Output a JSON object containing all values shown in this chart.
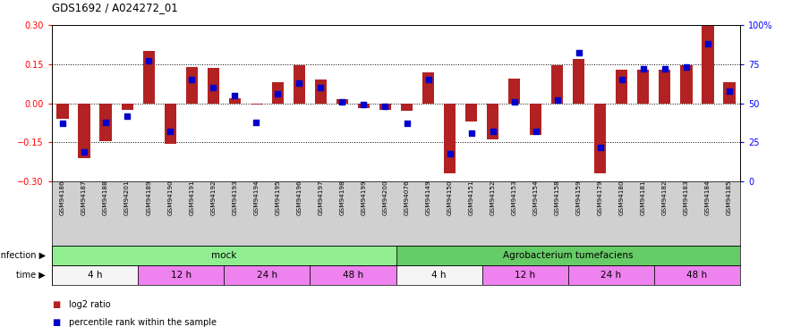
{
  "title": "GDS1692 / A024272_01",
  "samples": [
    "GSM94186",
    "GSM94187",
    "GSM94188",
    "GSM94201",
    "GSM94189",
    "GSM94190",
    "GSM94191",
    "GSM94192",
    "GSM94193",
    "GSM94194",
    "GSM94195",
    "GSM94196",
    "GSM94197",
    "GSM94198",
    "GSM94199",
    "GSM94200",
    "GSM94076",
    "GSM94149",
    "GSM94150",
    "GSM94151",
    "GSM94152",
    "GSM94153",
    "GSM94154",
    "GSM94158",
    "GSM94159",
    "GSM94179",
    "GSM94180",
    "GSM94181",
    "GSM94182",
    "GSM94183",
    "GSM94184",
    "GSM94185"
  ],
  "log2_ratio": [
    -0.06,
    -0.21,
    -0.145,
    -0.025,
    0.2,
    -0.155,
    0.14,
    0.135,
    0.02,
    -0.005,
    0.08,
    0.145,
    0.09,
    0.015,
    -0.02,
    -0.025,
    -0.03,
    0.12,
    -0.27,
    -0.07,
    -0.14,
    0.095,
    -0.12,
    0.145,
    0.17,
    -0.27,
    0.13,
    0.13,
    0.13,
    0.145,
    0.3,
    0.08
  ],
  "percentile_rank": [
    37,
    19,
    38,
    42,
    77,
    32,
    65,
    60,
    55,
    38,
    56,
    63,
    60,
    51,
    49,
    48,
    37,
    65,
    18,
    31,
    32,
    51,
    32,
    52,
    82,
    22,
    65,
    72,
    72,
    73,
    88,
    58
  ],
  "infection_labels": [
    "mock",
    "Agrobacterium tumefaciens"
  ],
  "infection_colors": [
    "#90ee90",
    "#66cc66"
  ],
  "time_groups": [
    {
      "label": "4 h",
      "start": 0,
      "end": 4,
      "color": "#f5f5f5"
    },
    {
      "label": "12 h",
      "start": 4,
      "end": 8,
      "color": "#ee82ee"
    },
    {
      "label": "24 h",
      "start": 8,
      "end": 12,
      "color": "#ee82ee"
    },
    {
      "label": "48 h",
      "start": 12,
      "end": 16,
      "color": "#ee82ee"
    },
    {
      "label": "4 h",
      "start": 16,
      "end": 20,
      "color": "#f5f5f5"
    },
    {
      "label": "12 h",
      "start": 20,
      "end": 24,
      "color": "#ee82ee"
    },
    {
      "label": "24 h",
      "start": 24,
      "end": 28,
      "color": "#ee82ee"
    },
    {
      "label": "48 h",
      "start": 28,
      "end": 32,
      "color": "#ee82ee"
    }
  ],
  "ylim": [
    -0.3,
    0.3
  ],
  "yticks_left": [
    -0.3,
    -0.15,
    0.0,
    0.15,
    0.3
  ],
  "yticks_right_vals": [
    0,
    25,
    50,
    75,
    100
  ],
  "yticks_right_labels": [
    "0",
    "25",
    "50",
    "75",
    "100%"
  ],
  "bar_color": "#b22222",
  "dot_color": "#0000cc",
  "background_color": "#ffffff",
  "samp_bg_color": "#d0d0d0",
  "hline_vals": [
    -0.15,
    0.0,
    0.15
  ],
  "n_samples": 32,
  "n_mock": 16,
  "n_agro": 16
}
